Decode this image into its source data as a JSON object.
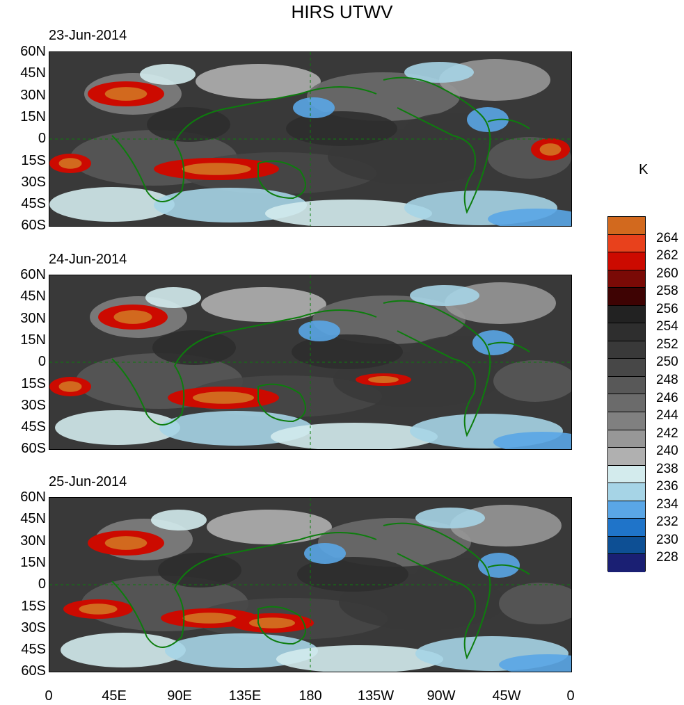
{
  "title": "HIRS UTWV",
  "panels": [
    {
      "date": "23-Jun-2014"
    },
    {
      "date": "24-Jun-2014"
    },
    {
      "date": "25-Jun-2014"
    }
  ],
  "lat_labels": [
    "60N",
    "45N",
    "30N",
    "15N",
    "0",
    "15S",
    "30S",
    "45S",
    "60S"
  ],
  "lon_labels": [
    "0",
    "45E",
    "90E",
    "135E",
    "180",
    "135W",
    "90W",
    "45W",
    "0"
  ],
  "colorbar": {
    "units": "K",
    "levels": [
      "264",
      "262",
      "260",
      "258",
      "256",
      "254",
      "252",
      "250",
      "248",
      "246",
      "244",
      "242",
      "240",
      "238",
      "236",
      "234",
      "232",
      "230",
      "228"
    ],
    "colors": [
      "#d2691e",
      "#e8411c",
      "#cc0a00",
      "#7a0a06",
      "#3e0303",
      "#222222",
      "#2e2e2e",
      "#393939",
      "#474747",
      "#585858",
      "#6b6b6b",
      "#808080",
      "#979797",
      "#b0b0b0",
      "#d3ebed",
      "#a6d4e6",
      "#5aa6e6",
      "#1f74c9",
      "#0d4f94",
      "#1a1f73"
    ]
  },
  "land_color": "#0d7d0d"
}
